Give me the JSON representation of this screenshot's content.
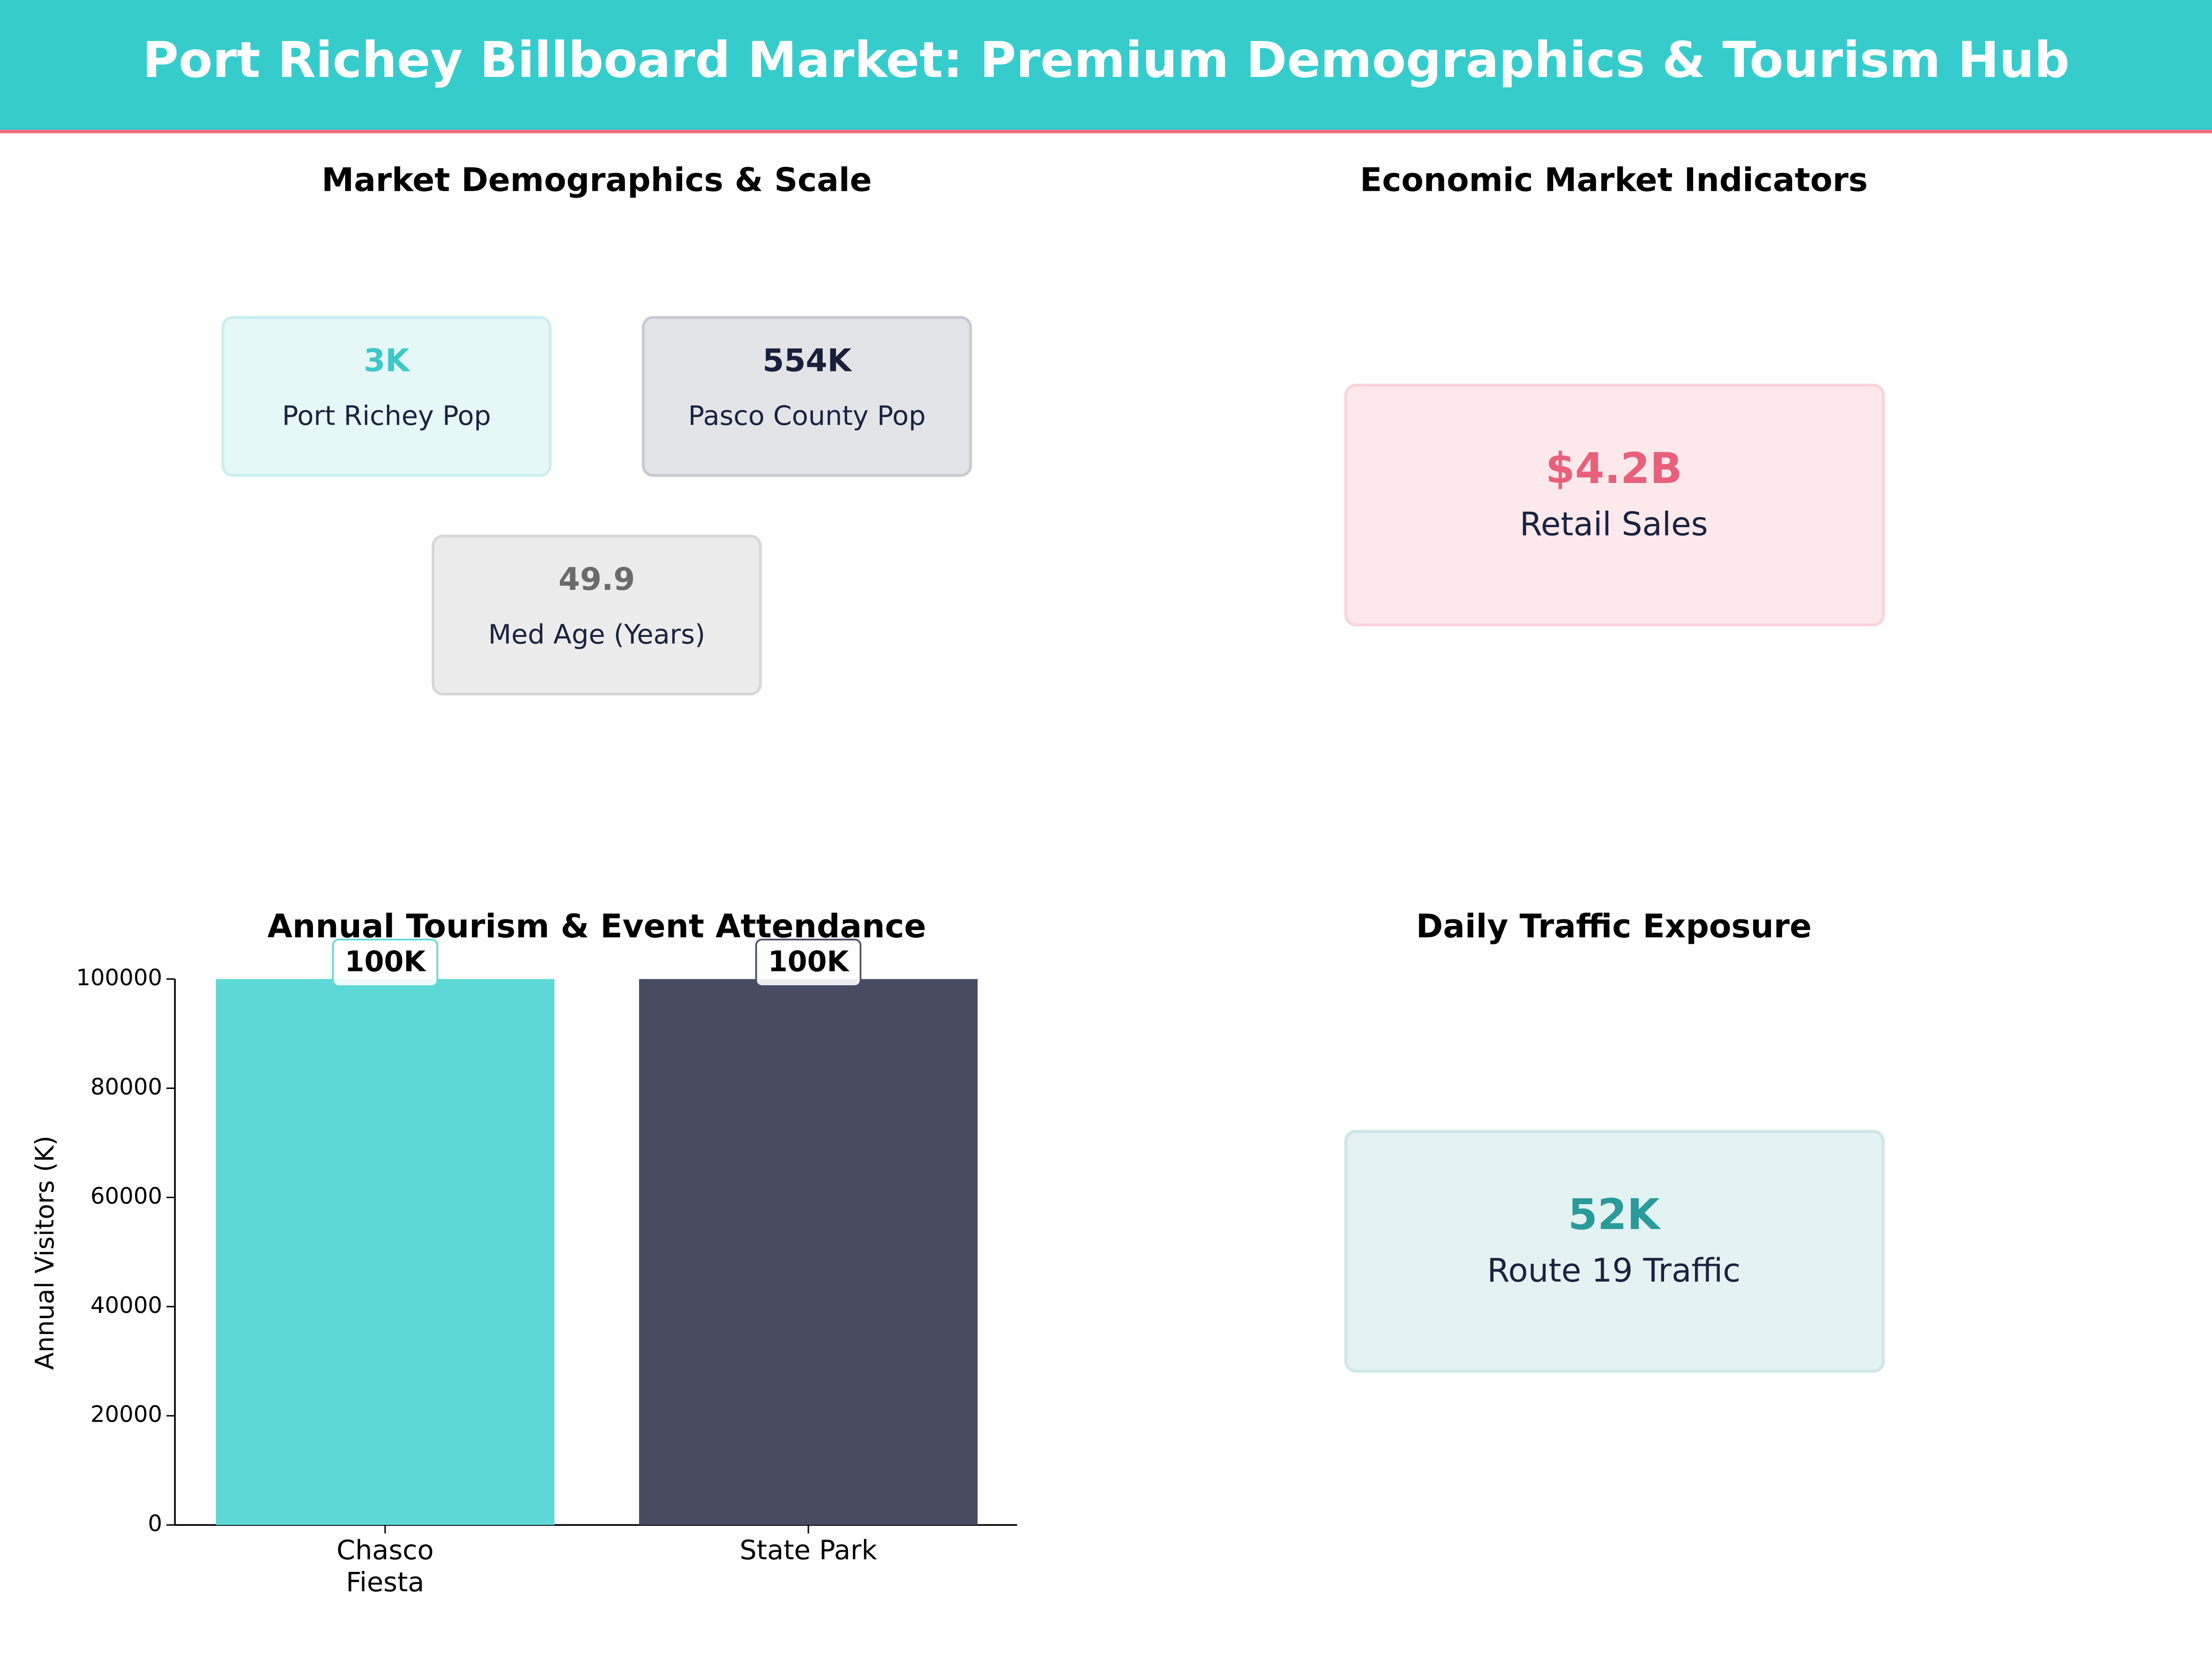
{
  "header": {
    "title": "Port Richey Billboard Market: Premium Demographics & Tourism Hub"
  },
  "demographics": {
    "title": "Market Demographics & Scale",
    "cards": [
      {
        "value": "3K",
        "label": "Port Richey Pop",
        "color": "#3cc8c8"
      },
      {
        "value": "554K",
        "label": "Pasco County Pop",
        "color": "#1a1f3a"
      },
      {
        "value": "49.9",
        "label": "Med Age (Years)",
        "color": "#6b6b6b"
      }
    ]
  },
  "economic": {
    "title": "Economic Market Indicators",
    "card": {
      "value": "$4.2B",
      "label": "Retail Sales",
      "color": "#e8607a"
    }
  },
  "traffic": {
    "title": "Daily Traffic Exposure",
    "card": {
      "value": "52K",
      "label": "Route 19 Traffic",
      "color": "#2a9a9a"
    }
  },
  "chart_data": {
    "type": "bar",
    "title": "Annual Tourism & Event Attendance",
    "categories": [
      "Chasco\nFiesta",
      "State Park"
    ],
    "values": [
      100000,
      100000
    ],
    "value_labels": [
      "100K",
      "100K"
    ],
    "colors": [
      "#5ed8d6",
      "#474c63"
    ],
    "ylabel": "Annual Visitors (K)",
    "ylim": [
      0,
      100000
    ],
    "yticks": [
      0,
      20000,
      40000,
      60000,
      80000,
      100000
    ]
  }
}
